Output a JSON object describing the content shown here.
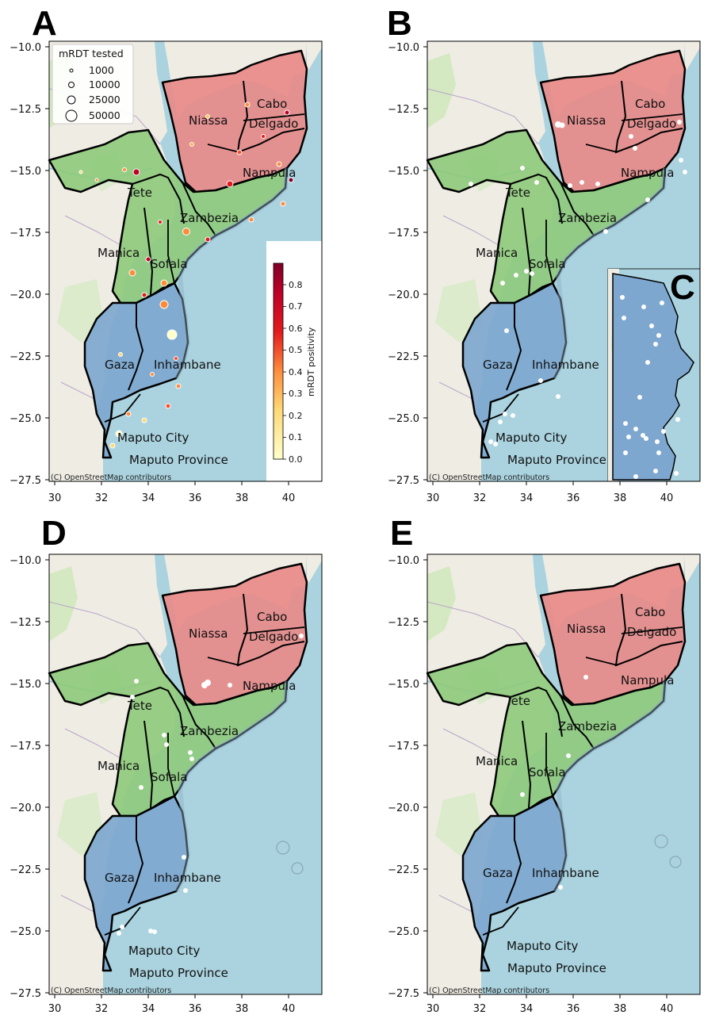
{
  "panels": [
    {
      "letter": "A",
      "attribution": "(C) OpenStreetMap contributors"
    },
    {
      "letter": "B",
      "attribution": "(C) OpenStreetMap contributors"
    },
    {
      "letter": "C"
    },
    {
      "letter": "D",
      "attribution": "(C) OpenStreetMap contributors"
    },
    {
      "letter": "E",
      "attribution": "(C) OpenStreetMap contributors"
    }
  ],
  "axes": {
    "y_ticks": [
      "−10.0",
      "−12.5",
      "−15.0",
      "−17.5",
      "−20.0",
      "−22.5",
      "−25.0",
      "−27.5"
    ],
    "x_ticks": [
      "30",
      "32",
      "34",
      "36",
      "38",
      "40"
    ]
  },
  "provinces": {
    "niassa": "Niassa",
    "cabo": "Cabo",
    "delgado": "Delgado",
    "nampula": "Nampula",
    "tete": "Tete",
    "zambezia": "Zambezia",
    "manica": "Manica",
    "sofala": "Sofala",
    "gaza": "Gaza",
    "inhambane": "Inhambane",
    "maputo_city": "Maputo City",
    "maputo_province": "Maputo Province"
  },
  "legend": {
    "title": "mRDT tested",
    "sizes": [
      "1000",
      "10000",
      "25000",
      "50000"
    ]
  },
  "colorbar": {
    "label": "mRDT positivity",
    "ticks": [
      "0.0",
      "0.1",
      "0.2",
      "0.3",
      "0.4",
      "0.5",
      "0.6",
      "0.7",
      "0.8"
    ]
  },
  "colors": {
    "ocean": "#aad3df",
    "land": "#efece4",
    "north": "#e88a89",
    "central": "#8fca7d",
    "south": "#7ea7cf"
  }
}
